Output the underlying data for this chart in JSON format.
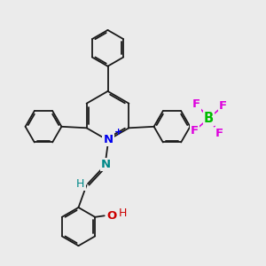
{
  "bg_color": "#ebebeb",
  "bond_color": "#1a1a1a",
  "N_color": "#0000ee",
  "N2_color": "#008888",
  "O_color": "#cc0000",
  "H_color": "#008888",
  "B_color": "#00bb00",
  "F_color": "#dd00dd",
  "bond_width": 1.3,
  "figsize": [
    3.0,
    3.0
  ],
  "dpi": 100,
  "xlim": [
    0,
    10
  ],
  "ylim": [
    0,
    10
  ]
}
